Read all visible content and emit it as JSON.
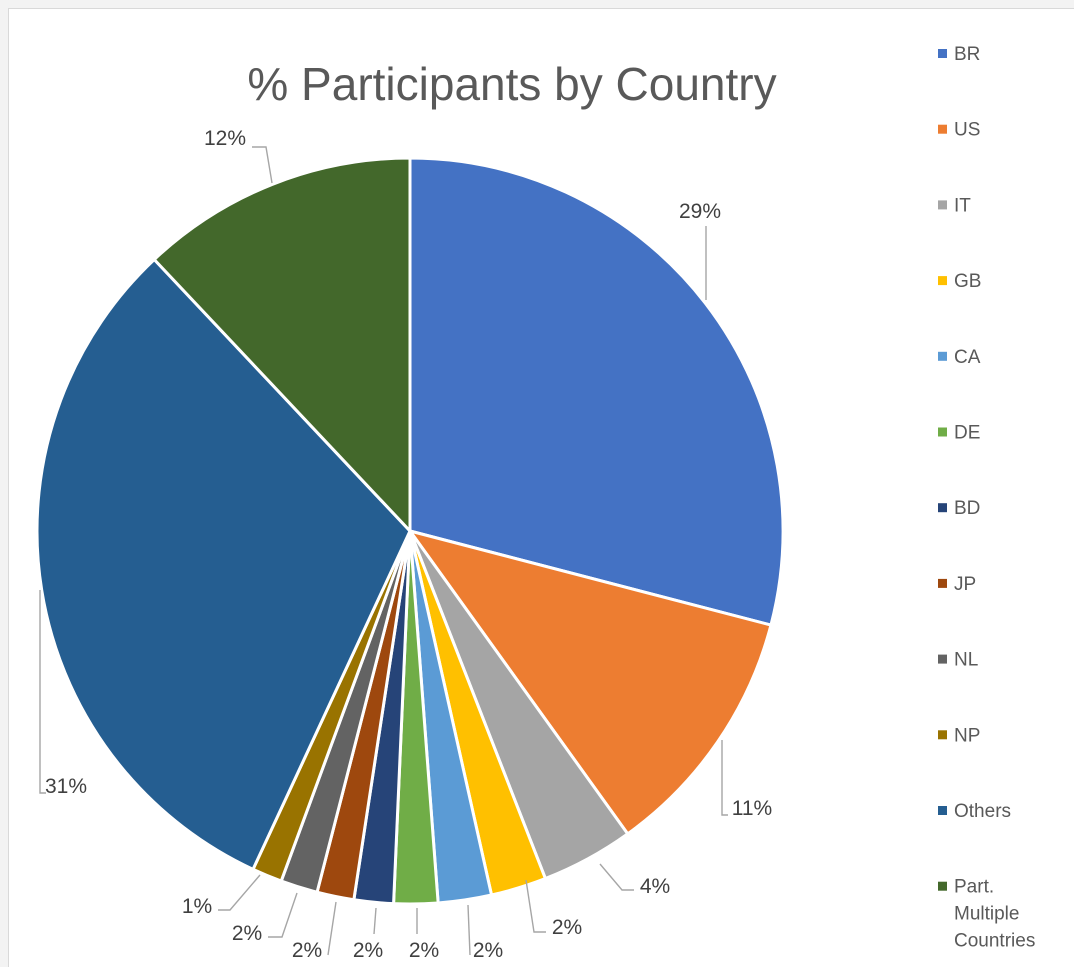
{
  "chart_data": {
    "type": "pie",
    "title": "% Participants by Country",
    "legend_position": "right",
    "start_angle_deg": 0,
    "direction": "clockwise",
    "slices": [
      {
        "name": "BR",
        "value": 29,
        "label": "29%",
        "color": "#4472C4"
      },
      {
        "name": "US",
        "value": 11,
        "label": "11%",
        "color": "#ED7D31"
      },
      {
        "name": "IT",
        "value": 4,
        "label": "4%",
        "color": "#A5A5A5"
      },
      {
        "name": "GB",
        "value": 2.4,
        "label": "2%",
        "color": "#FFC000"
      },
      {
        "name": "CA",
        "value": 2.3,
        "label": "2%",
        "color": "#5B9BD5"
      },
      {
        "name": "DE",
        "value": 1.9,
        "label": "2%",
        "color": "#70AD47"
      },
      {
        "name": "BD",
        "value": 1.7,
        "label": "2%",
        "color": "#264478"
      },
      {
        "name": "JP",
        "value": 1.6,
        "label": "2%",
        "color": "#9E480E"
      },
      {
        "name": "NL",
        "value": 1.6,
        "label": "2%",
        "color": "#636363"
      },
      {
        "name": "NP",
        "value": 1.3,
        "label": "1%",
        "color": "#997300"
      },
      {
        "name": "Others",
        "value": 31,
        "label": "31%",
        "color": "#255E91"
      },
      {
        "name": "Part. Multiple Countries",
        "value": 12,
        "label": "12%",
        "color": "#43682B"
      }
    ]
  }
}
